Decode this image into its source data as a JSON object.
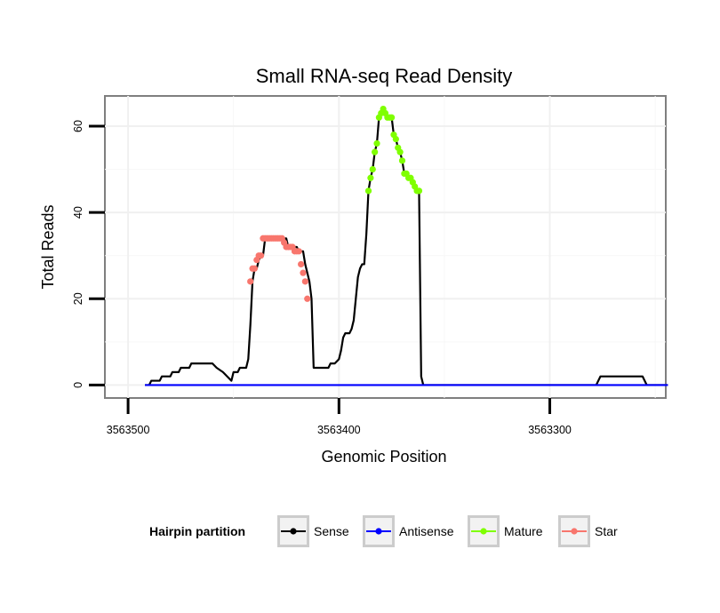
{
  "chart_data": {
    "type": "line",
    "title": "Small RNA-seq Read Density",
    "xlabel": "Genomic Position",
    "ylabel": "Total Reads",
    "xlim": [
      3563511,
      3563245
    ],
    "x_reversed": true,
    "ylim": [
      -3,
      67
    ],
    "x_ticks": [
      3563500,
      3563400,
      3563300
    ],
    "x_tick_labels": [
      "3563500",
      "3563400",
      "3563300"
    ],
    "y_ticks": [
      0,
      20,
      40,
      60
    ],
    "y_tick_labels": [
      "0",
      "20",
      "40",
      "60"
    ],
    "grid": true,
    "series": [
      {
        "name": "Sense",
        "color": "#000000",
        "points": [
          [
            3563492,
            0
          ],
          [
            3563490,
            0
          ],
          [
            3563489,
            1
          ],
          [
            3563485,
            1
          ],
          [
            3563484,
            2
          ],
          [
            3563480,
            2
          ],
          [
            3563479,
            3
          ],
          [
            3563476,
            3
          ],
          [
            3563475,
            4
          ],
          [
            3563471,
            4
          ],
          [
            3563470,
            5
          ],
          [
            3563460,
            5
          ],
          [
            3563458,
            4
          ],
          [
            3563455,
            3
          ],
          [
            3563453,
            2
          ],
          [
            3563451,
            1
          ],
          [
            3563450,
            3
          ],
          [
            3563448,
            3
          ],
          [
            3563447,
            4
          ],
          [
            3563444,
            4
          ],
          [
            3563443,
            6
          ],
          [
            3563442,
            14
          ],
          [
            3563441,
            24
          ],
          [
            3563440,
            27
          ],
          [
            3563439,
            27
          ],
          [
            3563438,
            29
          ],
          [
            3563437,
            30
          ],
          [
            3563436,
            30
          ],
          [
            3563435,
            34
          ],
          [
            3563425,
            34
          ],
          [
            3563424,
            32
          ],
          [
            3563420,
            32
          ],
          [
            3563419,
            31
          ],
          [
            3563417,
            31
          ],
          [
            3563416,
            28
          ],
          [
            3563415,
            26
          ],
          [
            3563414,
            24
          ],
          [
            3563413,
            20
          ],
          [
            3563412,
            4
          ],
          [
            3563405,
            4
          ],
          [
            3563404,
            5
          ],
          [
            3563402,
            5
          ],
          [
            3563400,
            6
          ],
          [
            3563399,
            8
          ],
          [
            3563398,
            11
          ],
          [
            3563397,
            12
          ],
          [
            3563395,
            12
          ],
          [
            3563394,
            13
          ],
          [
            3563393,
            15
          ],
          [
            3563392,
            20
          ],
          [
            3563391,
            25
          ],
          [
            3563390,
            27
          ],
          [
            3563389,
            28
          ],
          [
            3563388,
            28
          ],
          [
            3563387,
            35
          ],
          [
            3563386,
            45
          ],
          [
            3563385,
            48
          ],
          [
            3563384,
            50
          ],
          [
            3563383,
            54
          ],
          [
            3563382,
            56
          ],
          [
            3563381,
            62
          ],
          [
            3563380,
            63
          ],
          [
            3563379,
            64
          ],
          [
            3563378,
            63
          ],
          [
            3563377,
            62
          ],
          [
            3563376,
            62
          ],
          [
            3563375,
            62
          ],
          [
            3563374,
            58
          ],
          [
            3563373,
            57
          ],
          [
            3563372,
            55
          ],
          [
            3563371,
            54
          ],
          [
            3563370,
            52
          ],
          [
            3563369,
            49
          ],
          [
            3563368,
            49
          ],
          [
            3563367,
            48
          ],
          [
            3563366,
            48
          ],
          [
            3563365,
            47
          ],
          [
            3563364,
            46
          ],
          [
            3563363,
            45
          ],
          [
            3563362,
            45
          ],
          [
            3563361,
            2
          ],
          [
            3563360,
            0
          ],
          [
            3563278,
            0
          ],
          [
            3563276,
            2
          ],
          [
            3563256,
            2
          ],
          [
            3563254,
            0
          ],
          [
            3563244,
            0
          ]
        ]
      },
      {
        "name": "Antisense",
        "color": "#0000ff",
        "points": [
          [
            3563492,
            0
          ],
          [
            3563244,
            0
          ]
        ]
      },
      {
        "name": "Mature",
        "color": "#7fff00",
        "points": [
          [
            3563386,
            45
          ],
          [
            3563385,
            48
          ],
          [
            3563384,
            50
          ],
          [
            3563383,
            54
          ],
          [
            3563382,
            56
          ],
          [
            3563381,
            62
          ],
          [
            3563380,
            63
          ],
          [
            3563379,
            64
          ],
          [
            3563378,
            63
          ],
          [
            3563377,
            62
          ],
          [
            3563376,
            62
          ],
          [
            3563375,
            62
          ],
          [
            3563374,
            58
          ],
          [
            3563373,
            57
          ],
          [
            3563372,
            55
          ],
          [
            3563371,
            54
          ],
          [
            3563370,
            52
          ],
          [
            3563369,
            49
          ],
          [
            3563368,
            49
          ],
          [
            3563367,
            48
          ],
          [
            3563366,
            48
          ],
          [
            3563365,
            47
          ],
          [
            3563364,
            46
          ],
          [
            3563363,
            45
          ],
          [
            3563362,
            45
          ]
        ]
      },
      {
        "name": "Star",
        "color": "#f8766d",
        "points": [
          [
            3563442,
            24
          ],
          [
            3563441,
            27
          ],
          [
            3563440,
            27
          ],
          [
            3563439,
            29
          ],
          [
            3563438,
            30
          ],
          [
            3563437,
            30
          ],
          [
            3563436,
            34
          ],
          [
            3563435,
            34
          ],
          [
            3563434,
            34
          ],
          [
            3563433,
            34
          ],
          [
            3563432,
            34
          ],
          [
            3563431,
            34
          ],
          [
            3563430,
            34
          ],
          [
            3563429,
            34
          ],
          [
            3563428,
            34
          ],
          [
            3563427,
            34
          ],
          [
            3563426,
            33
          ],
          [
            3563425,
            32
          ],
          [
            3563424,
            32
          ],
          [
            3563423,
            32
          ],
          [
            3563422,
            32
          ],
          [
            3563421,
            31
          ],
          [
            3563420,
            31
          ],
          [
            3563419,
            31
          ],
          [
            3563418,
            28
          ],
          [
            3563417,
            26
          ],
          [
            3563416,
            24
          ],
          [
            3563415,
            20
          ]
        ]
      }
    ],
    "legend": {
      "title": "Hairpin partition",
      "position": "bottom",
      "entries": [
        {
          "label": "Sense",
          "color": "#000000"
        },
        {
          "label": "Antisense",
          "color": "#0000ff"
        },
        {
          "label": "Mature",
          "color": "#7fff00"
        },
        {
          "label": "Star",
          "color": "#f8766d"
        }
      ]
    }
  }
}
